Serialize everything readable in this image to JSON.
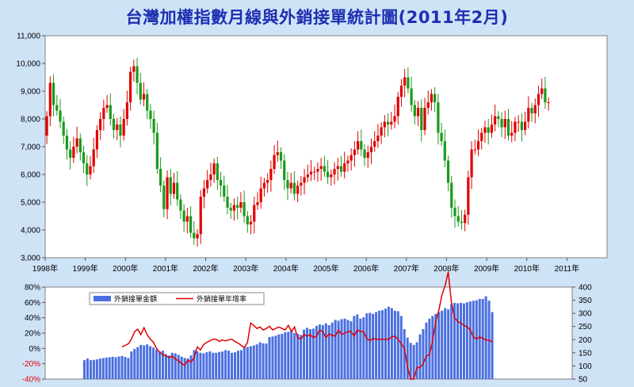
{
  "title": "台灣加權指數月線與外銷接單統計圖(2011年2月)",
  "chart_data": [
    {
      "type": "candlestick",
      "x_ticks": [
        "1998年",
        "1999年",
        "2000年",
        "2001年",
        "2002年",
        "2003年",
        "2004年",
        "2005年",
        "2006年",
        "2007年",
        "2008年",
        "2009年",
        "2010年",
        "2011年"
      ],
      "y_ticks": [
        "3,000",
        "4,000",
        "5,000",
        "6,000",
        "7,000",
        "8,000",
        "9,000",
        "10,000",
        "11,000"
      ],
      "ylim": [
        3000,
        11000
      ],
      "x_start": "1998-01",
      "up_color": "#e00000",
      "down_color": "#1a9a1a",
      "close": [
        8100,
        9300,
        8500,
        8300,
        7900,
        7400,
        6900,
        6600,
        7000,
        7300,
        6800,
        6400,
        6000,
        6300,
        6900,
        7600,
        8000,
        8400,
        8500,
        8000,
        7600,
        7800,
        7400,
        8000,
        8600,
        9700,
        9900,
        9300,
        8700,
        8900,
        8300,
        8000,
        7500,
        6200,
        5600,
        4750,
        5900,
        5300,
        5700,
        5100,
        4700,
        4300,
        4500,
        3900,
        3700,
        3850,
        5200,
        5500,
        5800,
        6000,
        6400,
        5800,
        5600,
        5200,
        4800,
        4700,
        4900,
        4800,
        5000,
        4500,
        4200,
        4300,
        4900,
        5000,
        5500,
        5700,
        5800,
        6200,
        6700,
        6800,
        6500,
        5800,
        5500,
        5700,
        5300,
        5600,
        5700,
        5900,
        6000,
        6100,
        6100,
        6200,
        6300,
        6100,
        5900,
        6000,
        6200,
        6300,
        6100,
        6400,
        6500,
        6700,
        6900,
        7200,
        6900,
        6600,
        6800,
        7000,
        7200,
        7400,
        7700,
        7900,
        7800,
        7900,
        8100,
        8800,
        9200,
        9500,
        9100,
        8500,
        8100,
        8400,
        7600,
        8400,
        8600,
        8900,
        8600,
        7500,
        7200,
        6500,
        5700,
        4800,
        4500,
        4300,
        4250,
        4550,
        5900,
        6900,
        6900,
        7200,
        7500,
        7700,
        7500,
        7800,
        8100,
        8000,
        7700,
        8000,
        7400,
        7500,
        7900,
        7900,
        7600,
        7900,
        8400,
        8200,
        8500,
        8900,
        9100,
        8600,
        8600
      ],
      "open": [
        7400,
        8100,
        9300,
        8500,
        8300,
        7900,
        7400,
        6900,
        6600,
        7000,
        7300,
        6800,
        6400,
        6000,
        6300,
        6900,
        7600,
        8000,
        8400,
        8500,
        8000,
        7600,
        7800,
        7400,
        8000,
        8600,
        9700,
        9900,
        9300,
        8700,
        8900,
        8300,
        8000,
        7500,
        6200,
        5600,
        4750,
        5900,
        5300,
        5700,
        5100,
        4700,
        4300,
        4500,
        3900,
        3700,
        3850,
        5200,
        5500,
        5800,
        6000,
        6400,
        5800,
        5600,
        5200,
        4800,
        4700,
        4900,
        4800,
        5000,
        4500,
        4200,
        4300,
        4900,
        5000,
        5500,
        5700,
        5800,
        6200,
        6700,
        6800,
        6500,
        5800,
        5500,
        5700,
        5300,
        5600,
        5700,
        5900,
        6000,
        6100,
        6100,
        6200,
        6300,
        6100,
        5900,
        6000,
        6200,
        6300,
        6100,
        6400,
        6500,
        6700,
        6900,
        7200,
        6900,
        6600,
        6800,
        7000,
        7200,
        7400,
        7700,
        7900,
        7800,
        7900,
        8100,
        8800,
        9200,
        9500,
        9100,
        8500,
        8100,
        8400,
        7600,
        8400,
        8600,
        8900,
        8600,
        7500,
        7200,
        6500,
        5700,
        4800,
        4500,
        4300,
        4250,
        4550,
        5900,
        6900,
        6900,
        7200,
        7500,
        7700,
        7500,
        7800,
        8100,
        8000,
        7700,
        8000,
        7400,
        7500,
        7900,
        7900,
        7600,
        7900,
        8400,
        8200,
        8500,
        8900,
        9100,
        8600
      ]
    },
    {
      "type": "bar+line",
      "series": [
        {
          "name": "外銷接單金額",
          "type": "bar",
          "axis": "right",
          "color": "#4a6fe0",
          "x_start": "1999-01",
          "values": [
            122,
            128,
            122,
            123,
            125,
            128,
            130,
            132,
            133,
            135,
            133,
            136,
            138,
            134,
            130,
            155,
            165,
            172,
            180,
            178,
            182,
            175,
            170,
            162,
            155,
            158,
            145,
            140,
            150,
            148,
            142,
            135,
            130,
            128,
            140,
            160,
            155,
            150,
            148,
            152,
            155,
            150,
            150,
            153,
            155,
            160,
            158,
            150,
            152,
            158,
            160,
            170,
            172,
            175,
            178,
            182,
            190,
            186,
            185,
            210,
            212,
            215,
            220,
            222,
            228,
            230,
            235,
            225,
            222,
            218,
            238,
            245,
            240,
            242,
            252,
            258,
            255,
            262,
            255,
            265,
            275,
            272,
            278,
            280,
            275,
            270,
            290,
            296,
            280,
            285,
            300,
            302,
            298,
            305,
            310,
            312,
            318,
            325,
            320,
            310,
            308,
            290,
            240,
            208,
            188,
            180,
            190,
            220,
            240,
            265,
            280,
            290,
            298,
            305,
            310,
            320,
            315,
            335,
            340,
            338,
            340,
            338,
            342,
            345,
            348,
            350,
            355,
            355,
            365,
            348,
            305
          ]
        },
        {
          "name": "外銷接單年增率",
          "type": "line",
          "axis": "left",
          "color": "#e00000",
          "x_start": "2000-01",
          "values": [
            2,
            4,
            6,
            12,
            22,
            25,
            18,
            27,
            18,
            12,
            8,
            0,
            -5,
            -8,
            -10,
            -12,
            -10,
            -14,
            -16,
            -20,
            -22,
            -15,
            -18,
            -12,
            2,
            -2,
            5,
            8,
            10,
            12,
            12,
            9,
            11,
            10,
            11,
            12,
            9,
            7,
            4,
            1,
            8,
            33,
            30,
            26,
            28,
            24,
            26,
            29,
            24,
            26,
            28,
            26,
            24,
            30,
            22,
            28,
            14,
            12,
            18,
            16,
            18,
            14,
            16,
            24,
            22,
            14,
            19,
            17,
            16,
            24,
            18,
            20,
            22,
            22,
            16,
            24,
            22,
            22,
            13,
            10,
            13,
            12,
            12,
            12,
            12,
            12,
            15,
            16,
            12,
            6,
            0,
            -24,
            -40,
            -40,
            -25,
            -25,
            -20,
            -10,
            -8,
            10,
            35,
            50,
            70,
            82,
            100,
            60,
            40,
            35,
            33,
            30,
            28,
            24,
            15,
            12,
            15,
            13,
            11,
            11,
            8
          ]
        }
      ],
      "left_ticks": [
        "80%",
        "60%",
        "40%",
        "20%",
        "0%",
        "-20%",
        "-40%"
      ],
      "left_ylim": [
        -40,
        80
      ],
      "right_ticks": [
        "400",
        "350",
        "300",
        "250",
        "200",
        "150",
        "100",
        "50"
      ],
      "right_ylim": [
        50,
        400
      ]
    }
  ]
}
